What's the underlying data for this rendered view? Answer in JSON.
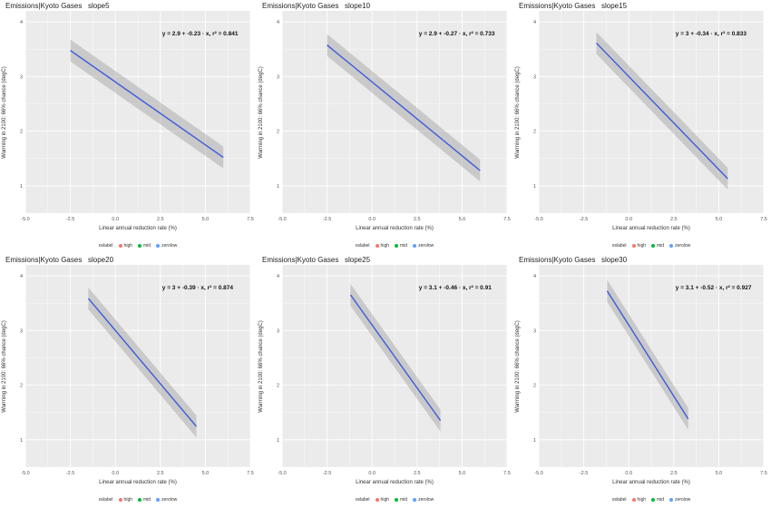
{
  "colors": {
    "high": "#f8766d",
    "mid": "#00ba38",
    "zerolow": "#619cff",
    "fit": "#3b5bdb",
    "panel_bg": "#ebebeb",
    "grid": "#ffffff"
  },
  "legend": {
    "title": "oslabel",
    "items": [
      "high",
      "mid",
      "zerolow"
    ]
  },
  "chart_data": [
    {
      "type": "scatter",
      "title": "Emissions|Kyoto Gases   slope5",
      "xlabel": "Linear annual reduction rate (%)",
      "ylabel": "Warming in 2100: 66% chance (degC)",
      "xlim": [
        -5.0,
        7.5
      ],
      "ylim": [
        0.5,
        4.2
      ],
      "xticks": [
        "-5.0",
        "-2.5",
        "0.0",
        "2.5",
        "5.0",
        "7.5"
      ],
      "yticks": [
        "1",
        "2",
        "3",
        "4"
      ],
      "intercept": 2.9,
      "slope": -0.23,
      "fit_x": [
        -2.5,
        6.0
      ],
      "equation": "y = 2.9 + -0.23 · x,  r² = 0.841",
      "grid": true,
      "legend_position": "bottom"
    },
    {
      "type": "scatter",
      "title": "Emissions|Kyoto Gases   slope10",
      "xlabel": "Linear annual reduction rate (%)",
      "ylabel": "Warming in 2100: 66% chance (degC)",
      "xlim": [
        -5.0,
        7.5
      ],
      "ylim": [
        0.5,
        4.2
      ],
      "xticks": [
        "-5.0",
        "-2.5",
        "0.0",
        "2.5",
        "5.0",
        "7.5"
      ],
      "yticks": [
        "1",
        "2",
        "3",
        "4"
      ],
      "intercept": 2.9,
      "slope": -0.27,
      "fit_x": [
        -2.5,
        6.0
      ],
      "equation": "y = 2.9 + -0.27 · x,  r² = 0.733",
      "grid": true,
      "legend_position": "bottom"
    },
    {
      "type": "scatter",
      "title": "Emissions|Kyoto Gases   slope15",
      "xlabel": "Linear annual reduction rate (%)",
      "ylabel": "Warming in 2100: 66% chance (degC)",
      "xlim": [
        -5.0,
        7.5
      ],
      "ylim": [
        0.5,
        4.2
      ],
      "xticks": [
        "-5.0",
        "-2.5",
        "0.0",
        "2.5",
        "5.0",
        "7.5"
      ],
      "yticks": [
        "1",
        "2",
        "3",
        "4"
      ],
      "intercept": 3.0,
      "slope": -0.34,
      "fit_x": [
        -1.8,
        5.5
      ],
      "equation": "y = 3 + -0.34 · x,  r² = 0.833",
      "grid": true,
      "legend_position": "bottom"
    },
    {
      "type": "scatter",
      "title": "Emissions|Kyoto Gases   slope20",
      "xlabel": "Linear annual reduction rate (%)",
      "ylabel": "Warming in 2100: 66% chance (degC)",
      "xlim": [
        -5.0,
        7.5
      ],
      "ylim": [
        0.5,
        4.2
      ],
      "xticks": [
        "-5.0",
        "-2.5",
        "0.0",
        "2.5",
        "5.0",
        "7.5"
      ],
      "yticks": [
        "1",
        "2",
        "3",
        "4"
      ],
      "intercept": 3.0,
      "slope": -0.39,
      "fit_x": [
        -1.5,
        4.5
      ],
      "equation": "y = 3 + -0.39 · x,  r² = 0.874",
      "grid": true,
      "legend_position": "bottom"
    },
    {
      "type": "scatter",
      "title": "Emissions|Kyoto Gases   slope25",
      "xlabel": "Linear annual reduction rate (%)",
      "ylabel": "Warming in 2100: 66% chance (degC)",
      "xlim": [
        -5.0,
        7.5
      ],
      "ylim": [
        0.5,
        4.2
      ],
      "xticks": [
        "-5.0",
        "-2.5",
        "0.0",
        "2.5",
        "5.0",
        "7.5"
      ],
      "yticks": [
        "1",
        "2",
        "3",
        "4"
      ],
      "intercept": 3.1,
      "slope": -0.46,
      "fit_x": [
        -1.2,
        3.8
      ],
      "equation": "y = 3.1 + -0.46 · x,  r² = 0.91",
      "grid": true,
      "legend_position": "bottom"
    },
    {
      "type": "scatter",
      "title": "Emissions|Kyoto Gases   slope30",
      "xlabel": "Linear annual reduction rate (%)",
      "ylabel": "Warming in 2100: 66% chance (degC)",
      "xlim": [
        -5.0,
        7.5
      ],
      "ylim": [
        0.5,
        4.2
      ],
      "xticks": [
        "-5.0",
        "-2.5",
        "0.0",
        "2.5",
        "5.0",
        "7.5"
      ],
      "yticks": [
        "1",
        "2",
        "3",
        "4"
      ],
      "intercept": 3.1,
      "slope": -0.52,
      "fit_x": [
        -1.2,
        3.3
      ],
      "equation": "y = 3.1 + -0.52 · x,  r² = 0.927",
      "grid": true,
      "legend_position": "bottom"
    }
  ]
}
